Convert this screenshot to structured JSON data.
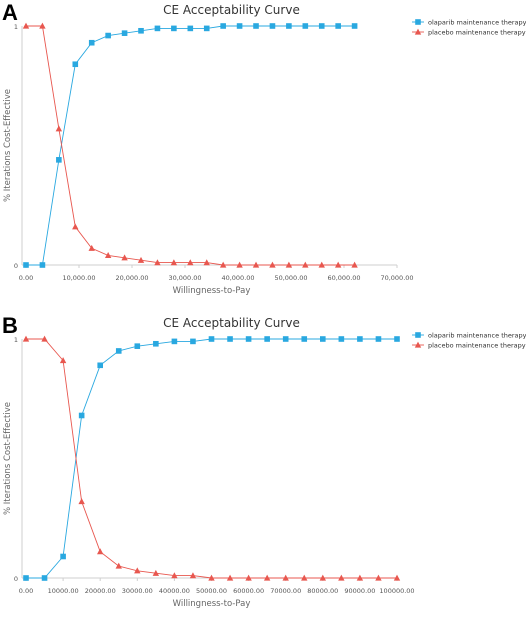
{
  "chart_data": [
    {
      "panel": "A",
      "type": "line",
      "title": "CE Acceptability Curve",
      "xlabel": "Willingness-to-Pay",
      "ylabel": "% Iterations Cost-Effective",
      "xlim": [
        0,
        70000
      ],
      "ylim": [
        0,
        1
      ],
      "x_ticks": [
        "0.00",
        "10,000.00",
        "20,000.00",
        "30,000.00",
        "40,000.00",
        "50,000.00",
        "60,000.00",
        "70,000.00"
      ],
      "y_ticks": [
        "0",
        "1"
      ],
      "legend_position": "top-right",
      "x": [
        0,
        3100,
        6200,
        9300,
        12400,
        15500,
        18600,
        21700,
        24800,
        27900,
        31000,
        34100,
        37200,
        40300,
        43400,
        46500,
        49600,
        52700,
        55800,
        58900,
        62000
      ],
      "series": [
        {
          "name": "olaparib maintenance therapy",
          "color": "#29a8e0",
          "marker": "square",
          "values": [
            0,
            0,
            0.44,
            0.84,
            0.93,
            0.96,
            0.97,
            0.98,
            0.99,
            0.99,
            0.99,
            0.99,
            1.0,
            1.0,
            1.0,
            1.0,
            1.0,
            1.0,
            1.0,
            1.0,
            1.0
          ]
        },
        {
          "name": "placebo maintenance therapy",
          "color": "#e8574f",
          "marker": "triangle",
          "values": [
            1.0,
            1.0,
            0.57,
            0.16,
            0.07,
            0.04,
            0.03,
            0.02,
            0.01,
            0.01,
            0.01,
            0.01,
            0.0,
            0.0,
            0.0,
            0.0,
            0.0,
            0.0,
            0.0,
            0.0,
            0.0
          ]
        }
      ]
    },
    {
      "panel": "B",
      "type": "line",
      "title": "CE Acceptability Curve",
      "xlabel": "Willingness-to-Pay",
      "ylabel": "% Iterations Cost-Effective",
      "xlim": [
        0,
        100000
      ],
      "ylim": [
        0,
        1
      ],
      "x_ticks": [
        "0.00",
        "10000.00",
        "20000.00",
        "30000.00",
        "40000.00",
        "50000.00",
        "60000.00",
        "70000.00",
        "80000.00",
        "90000.00",
        "100000.00"
      ],
      "y_ticks": [
        "0",
        "1"
      ],
      "legend_position": "top-right",
      "x": [
        0,
        5000,
        10000,
        15000,
        20000,
        25000,
        30000,
        35000,
        40000,
        45000,
        50000,
        55000,
        60000,
        65000,
        70000,
        75000,
        80000,
        85000,
        90000,
        95000,
        100000
      ],
      "series": [
        {
          "name": "olaparib maintenance therapy",
          "color": "#29a8e0",
          "marker": "square",
          "values": [
            0,
            0,
            0.09,
            0.68,
            0.89,
            0.95,
            0.97,
            0.98,
            0.99,
            0.99,
            1.0,
            1.0,
            1.0,
            1.0,
            1.0,
            1.0,
            1.0,
            1.0,
            1.0,
            1.0,
            1.0
          ]
        },
        {
          "name": "placebo maintenance therapy",
          "color": "#e8574f",
          "marker": "triangle",
          "values": [
            1.0,
            1.0,
            0.91,
            0.32,
            0.11,
            0.05,
            0.03,
            0.02,
            0.01,
            0.01,
            0.0,
            0.0,
            0.0,
            0.0,
            0.0,
            0.0,
            0.0,
            0.0,
            0.0,
            0.0,
            0.0
          ]
        }
      ]
    }
  ]
}
